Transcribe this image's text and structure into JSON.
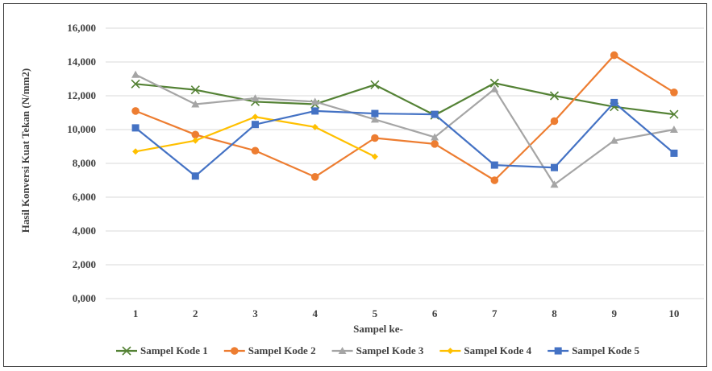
{
  "chart_data": {
    "type": "line",
    "title": "",
    "xlabel": "Sampel ke-",
    "ylabel": "Hasil Konversi Kuat Tekan (N/mm2)",
    "categories": [
      "1",
      "2",
      "3",
      "4",
      "5",
      "6",
      "7",
      "8",
      "9",
      "10"
    ],
    "ylim": [
      0,
      16000
    ],
    "yticks": [
      "0,000",
      "2,000",
      "4,000",
      "6,000",
      "8,000",
      "10,000",
      "12,000",
      "14,000",
      "16,000"
    ],
    "grid": true,
    "legend_position": "bottom",
    "series": [
      {
        "name": "Sampel Kode 1",
        "color": "#548235",
        "marker": "x",
        "values": [
          12700,
          12350,
          11650,
          11500,
          12650,
          10850,
          12750,
          12000,
          11350,
          10900
        ]
      },
      {
        "name": "Sampel Kode 2",
        "color": "#ED7D31",
        "marker": "circle",
        "values": [
          11100,
          9700,
          8750,
          7200,
          9500,
          9150,
          7000,
          10500,
          14400,
          12200
        ]
      },
      {
        "name": "Sampel Kode 3",
        "color": "#A5A5A5",
        "marker": "triangle",
        "values": [
          13250,
          11500,
          11850,
          11650,
          10600,
          9550,
          12400,
          6750,
          9350,
          10000
        ]
      },
      {
        "name": "Sampel Kode 4",
        "color": "#FFC000",
        "marker": "diamond",
        "values": [
          8700,
          9350,
          10750,
          10150,
          8400,
          null,
          null,
          null,
          null,
          null
        ]
      },
      {
        "name": "Sampel Kode 5",
        "color": "#4472C4",
        "marker": "square",
        "values": [
          10100,
          7250,
          10300,
          11100,
          10950,
          10900,
          7900,
          7750,
          11600,
          8600
        ]
      }
    ]
  }
}
